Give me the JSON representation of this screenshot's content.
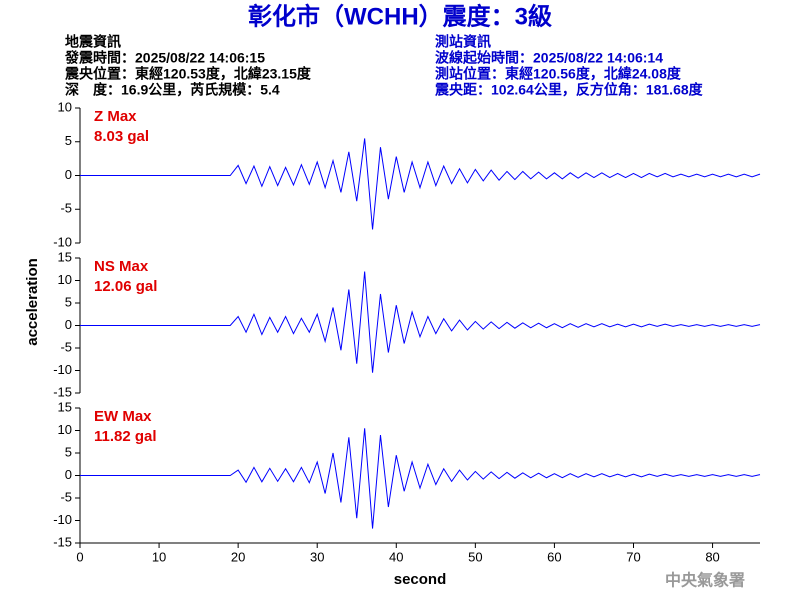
{
  "header": {
    "title": "彰化市（WCHH）震度：3級",
    "left": [
      "地震資訊",
      "發震時間：2025/08/22 14:06:15",
      "震央位置：東經120.53度，北緯23.15度",
      "深　度：16.9公里，芮氏規模：5.4"
    ],
    "right": [
      "測站資訊",
      "波線起始時間：2025/08/22 14:06:14",
      "測站位置：東經120.56度，北緯24.08度",
      "震央距：102.64公里，反方位角：181.68度"
    ]
  },
  "footer": "中央氣象署",
  "chart_data": [
    {
      "type": "line",
      "label": "Z Max",
      "max_label": "8.03 gal",
      "xlim": [
        0,
        86
      ],
      "ylim": [
        -10,
        10
      ],
      "yticks": [
        -10,
        -5,
        0,
        5,
        10
      ],
      "x": [
        0,
        19,
        20,
        21,
        22,
        23,
        24,
        25,
        26,
        27,
        28,
        29,
        30,
        31,
        32,
        33,
        34,
        35,
        36,
        37,
        38,
        39,
        40,
        41,
        42,
        43,
        44,
        45,
        46,
        47,
        48,
        49,
        50,
        51,
        52,
        53,
        54,
        55,
        56,
        57,
        58,
        59,
        60,
        61,
        62,
        63,
        64,
        65,
        66,
        67,
        68,
        69,
        70,
        71,
        72,
        73,
        74,
        75,
        76,
        77,
        78,
        79,
        80,
        81,
        82,
        83,
        84,
        85,
        86
      ],
      "series": [
        {
          "color": "#0000ff",
          "values": [
            0,
            0,
            1.5,
            -1.2,
            1.4,
            -1.6,
            1.3,
            -1.5,
            1.2,
            -1.4,
            1.6,
            -1.3,
            2.0,
            -1.8,
            2.2,
            -2.5,
            3.5,
            -3.8,
            5.5,
            -8.0,
            4.2,
            -3.5,
            2.8,
            -2.5,
            2.0,
            -1.8,
            2.0,
            -1.5,
            1.4,
            -1.2,
            1.0,
            -1.1,
            0.9,
            -0.8,
            0.8,
            -0.7,
            0.6,
            -0.6,
            0.6,
            -0.5,
            0.5,
            -0.5,
            0.4,
            -0.5,
            0.4,
            -0.4,
            0.4,
            -0.3,
            0.4,
            -0.3,
            0.3,
            -0.3,
            0.3,
            -0.3,
            0.3,
            -0.2,
            0.3,
            -0.2,
            0.2,
            -0.2,
            0.2,
            -0.2,
            0.2,
            -0.2,
            0.2,
            -0.2,
            0.2,
            -0.2,
            0.2
          ]
        }
      ]
    },
    {
      "type": "line",
      "label": "NS Max",
      "max_label": "12.06 gal",
      "ylabel": "acceleration",
      "xlim": [
        0,
        86
      ],
      "ylim": [
        -15,
        15
      ],
      "yticks": [
        -15,
        -10,
        -5,
        0,
        5,
        10,
        15
      ],
      "x": [
        0,
        19,
        20,
        21,
        22,
        23,
        24,
        25,
        26,
        27,
        28,
        29,
        30,
        31,
        32,
        33,
        34,
        35,
        36,
        37,
        38,
        39,
        40,
        41,
        42,
        43,
        44,
        45,
        46,
        47,
        48,
        49,
        50,
        51,
        52,
        53,
        54,
        55,
        56,
        57,
        58,
        59,
        60,
        61,
        62,
        63,
        64,
        65,
        66,
        67,
        68,
        69,
        70,
        71,
        72,
        73,
        74,
        75,
        76,
        77,
        78,
        79,
        80,
        81,
        82,
        83,
        84,
        85,
        86
      ],
      "series": [
        {
          "color": "#0000ff",
          "values": [
            0,
            0,
            2.0,
            -1.5,
            2.5,
            -2.0,
            1.8,
            -1.5,
            2.0,
            -1.8,
            1.6,
            -1.5,
            2.5,
            -3.5,
            4.0,
            -5.5,
            8.0,
            -8.5,
            12.0,
            -10.5,
            7.0,
            -6.0,
            4.5,
            -4.0,
            3.0,
            -2.5,
            2.0,
            -1.8,
            1.5,
            -1.2,
            1.2,
            -1.0,
            0.9,
            -0.8,
            0.8,
            -0.7,
            0.7,
            -0.6,
            0.6,
            -0.5,
            0.5,
            -0.5,
            0.4,
            -0.5,
            0.4,
            -0.4,
            0.4,
            -0.3,
            0.4,
            -0.3,
            0.3,
            -0.3,
            0.3,
            -0.3,
            0.3,
            -0.2,
            0.3,
            -0.2,
            0.2,
            -0.2,
            0.2,
            -0.2,
            0.2,
            -0.2,
            0.2,
            -0.2,
            0.2,
            -0.2,
            0.2
          ]
        }
      ]
    },
    {
      "type": "line",
      "label": "EW Max",
      "max_label": "11.82 gal",
      "xlabel": "second",
      "xlim": [
        0,
        86
      ],
      "ylim": [
        -15,
        15
      ],
      "yticks": [
        -15,
        -10,
        -5,
        0,
        5,
        10,
        15
      ],
      "xticks": [
        0,
        10,
        20,
        30,
        40,
        50,
        60,
        70,
        80
      ],
      "x": [
        0,
        19,
        20,
        21,
        22,
        23,
        24,
        25,
        26,
        27,
        28,
        29,
        30,
        31,
        32,
        33,
        34,
        35,
        36,
        37,
        38,
        39,
        40,
        41,
        42,
        43,
        44,
        45,
        46,
        47,
        48,
        49,
        50,
        51,
        52,
        53,
        54,
        55,
        56,
        57,
        58,
        59,
        60,
        61,
        62,
        63,
        64,
        65,
        66,
        67,
        68,
        69,
        70,
        71,
        72,
        73,
        74,
        75,
        76,
        77,
        78,
        79,
        80,
        81,
        82,
        83,
        84,
        85,
        86
      ],
      "series": [
        {
          "color": "#0000ff",
          "values": [
            0,
            0,
            1.2,
            -1.5,
            1.8,
            -1.4,
            1.6,
            -1.3,
            1.5,
            -1.4,
            1.8,
            -1.6,
            3.0,
            -4.0,
            5.0,
            -6.0,
            8.5,
            -9.5,
            10.5,
            -11.8,
            9.0,
            -7.0,
            4.5,
            -3.5,
            3.0,
            -2.8,
            2.5,
            -2.0,
            1.5,
            -1.3,
            1.2,
            -1.0,
            0.9,
            -0.8,
            0.8,
            -0.7,
            0.7,
            -0.6,
            0.6,
            -0.5,
            0.5,
            -0.5,
            0.4,
            -0.5,
            0.4,
            -0.4,
            0.4,
            -0.3,
            0.4,
            -0.3,
            0.3,
            -0.3,
            0.3,
            -0.3,
            0.3,
            -0.2,
            0.3,
            -0.2,
            0.2,
            -0.2,
            0.2,
            -0.2,
            0.2,
            -0.2,
            0.2,
            -0.2,
            0.2,
            -0.2,
            0.2
          ]
        }
      ]
    }
  ]
}
